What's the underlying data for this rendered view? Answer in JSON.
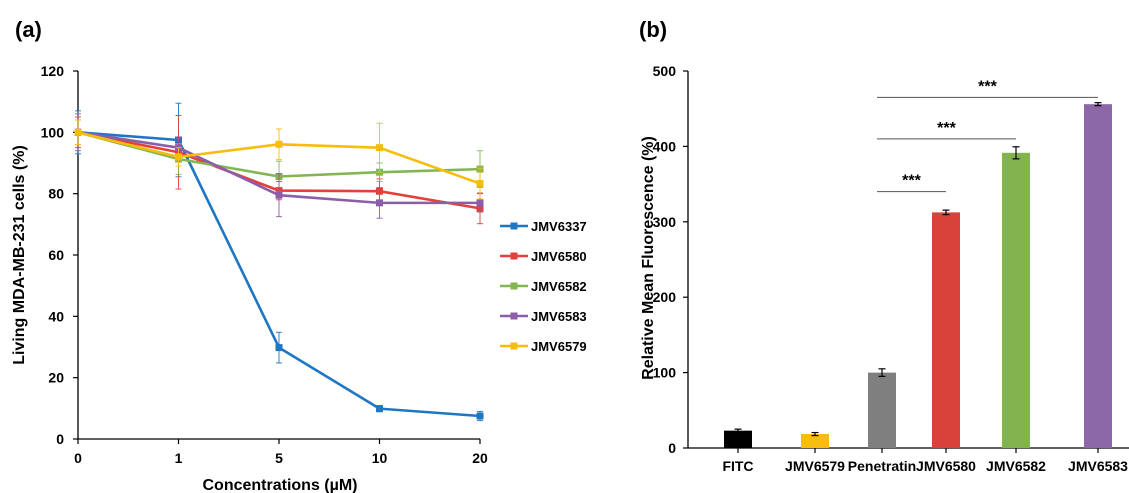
{
  "chart_data": [
    {
      "panel_label": "(a)",
      "type": "line",
      "x": [
        "0",
        "1",
        "5",
        "10",
        "20"
      ],
      "xlabel": "Concentrations (µM)",
      "ylabel": "Living MDA-MB-231 cells (%)",
      "ylim": [
        0,
        120
      ],
      "yticks": [
        "0",
        "20",
        "40",
        "60",
        "80",
        "100",
        "120"
      ],
      "grid": false,
      "legend_position": "right",
      "series": [
        {
          "name": "JMV6337",
          "color": "#1f77c4",
          "values": [
            100,
            97.5,
            29.8,
            9.9,
            7.5
          ],
          "errors": [
            7,
            12,
            5,
            1,
            1.5
          ]
        },
        {
          "name": "JMV6580",
          "color": "#e2403a",
          "values": [
            100,
            93.5,
            81,
            80.8,
            75.2
          ],
          "errors": [
            5,
            12,
            3,
            4,
            5
          ]
        },
        {
          "name": "JMV6582",
          "color": "#82b653",
          "values": [
            100,
            91.3,
            85.6,
            87,
            88
          ],
          "errors": [
            4,
            5,
            5,
            3,
            6
          ]
        },
        {
          "name": "JMV6583",
          "color": "#8c5eaa",
          "values": [
            100,
            95,
            79.5,
            77,
            77
          ],
          "errors": [
            6,
            3,
            7,
            5,
            3
          ]
        },
        {
          "name": "JMV6579",
          "color": "#f7bd0d",
          "values": [
            100,
            92,
            96.1,
            95,
            83.3
          ],
          "errors": [
            4,
            3,
            5,
            8,
            5
          ]
        }
      ]
    },
    {
      "panel_label": "(b)",
      "type": "bar",
      "categories": [
        "FITC",
        "JMV6579",
        "Penetratin",
        "JMV6580",
        "JMV6582",
        "JMV6583"
      ],
      "values": [
        23,
        18.5,
        100,
        312.5,
        391.5,
        456
      ],
      "errors": [
        2,
        2,
        5,
        3,
        8,
        2
      ],
      "colors": [
        "#000000",
        "#f7bd0d",
        "#7f7f7f",
        "#d9413b",
        "#82b34c",
        "#8d68a9"
      ],
      "ylabel": "Relative Mean Fluorescence (%)",
      "ylim": [
        0,
        500
      ],
      "yticks": [
        "0",
        "100",
        "200",
        "300",
        "400",
        "500"
      ],
      "grid": false,
      "significance": [
        {
          "label": "***",
          "from": "Penetratin",
          "to": "JMV6580",
          "level": 340
        },
        {
          "label": "***",
          "from": "Penetratin",
          "to": "JMV6582",
          "level": 410
        },
        {
          "label": "***",
          "from": "Penetratin",
          "to": "JMV6583",
          "level": 465
        }
      ]
    }
  ]
}
